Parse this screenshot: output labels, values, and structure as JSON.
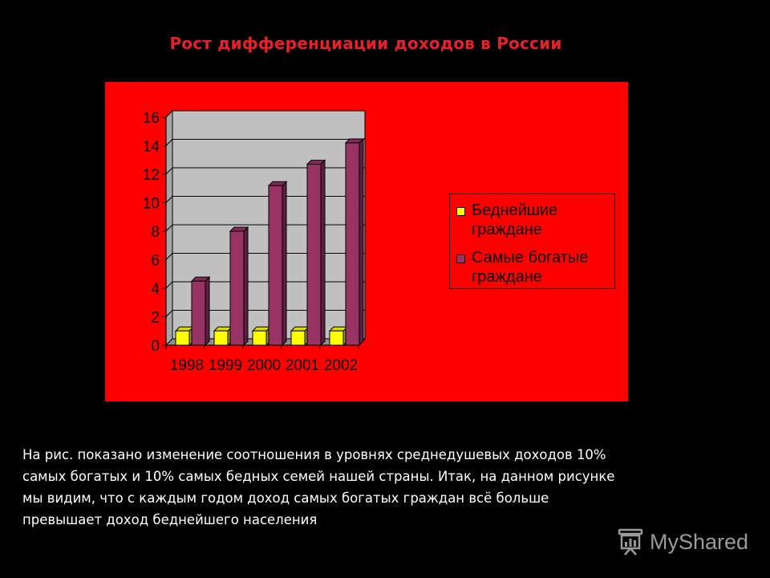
{
  "slide": {
    "title": "Рост дифференциации доходов в России",
    "description_lines": [
      "На рис. показано изменение соотношения в уровнях среднедушевых доходов 10%",
      "самых богатых и 10% самых бедных семей нашей страны. Итак, на данном рисунке",
      "мы видим, что с каждым годом доход самых богатых граждан всё больше",
      "превышает доход беднейшего населения"
    ],
    "watermark": "MyShared"
  },
  "colors": {
    "background": "#000000",
    "title": "#e8202a",
    "panel": "#ff0000",
    "plot_area": "#c0c0c0",
    "poorest": "#ffff00",
    "richest": "#993366"
  },
  "chart_data": {
    "type": "bar",
    "title": "",
    "xlabel": "",
    "ylabel": "",
    "categories": [
      "1998",
      "1999",
      "2000",
      "2001",
      "2002"
    ],
    "series": [
      {
        "name": "Беднейшие граждане",
        "values": [
          1,
          1,
          1,
          1,
          1
        ]
      },
      {
        "name": "Самые богатые граждане",
        "values": [
          4.5,
          8,
          11.2,
          12.7,
          14.2
        ]
      }
    ],
    "y_ticks": [
      "0",
      "2",
      "4",
      "6",
      "8",
      "10",
      "12",
      "14",
      "16"
    ],
    "ylim": [
      0,
      16
    ],
    "grid": true,
    "three_d": true,
    "legend_position": "right"
  }
}
